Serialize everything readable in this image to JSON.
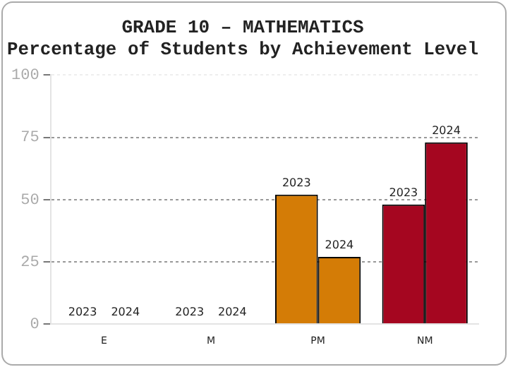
{
  "chart_data": {
    "type": "bar",
    "title": "GRADE 10 – MATHEMATICS",
    "subtitle": "Percentage of Students by Achievement Level",
    "categories": [
      "E",
      "M",
      "PM",
      "NM"
    ],
    "series": [
      {
        "name": "2023",
        "colors": [
          null,
          null,
          "#d47c06",
          "#a50620"
        ],
        "values": [
          0,
          0,
          52,
          48
        ]
      },
      {
        "name": "2024",
        "colors": [
          null,
          null,
          "#d47c06",
          "#a50620"
        ],
        "values": [
          0,
          0,
          27,
          73
        ]
      }
    ],
    "ylim": [
      0,
      100
    ],
    "yticks": [
      0,
      25,
      50,
      75,
      100
    ],
    "grid": "y",
    "legend": false
  }
}
